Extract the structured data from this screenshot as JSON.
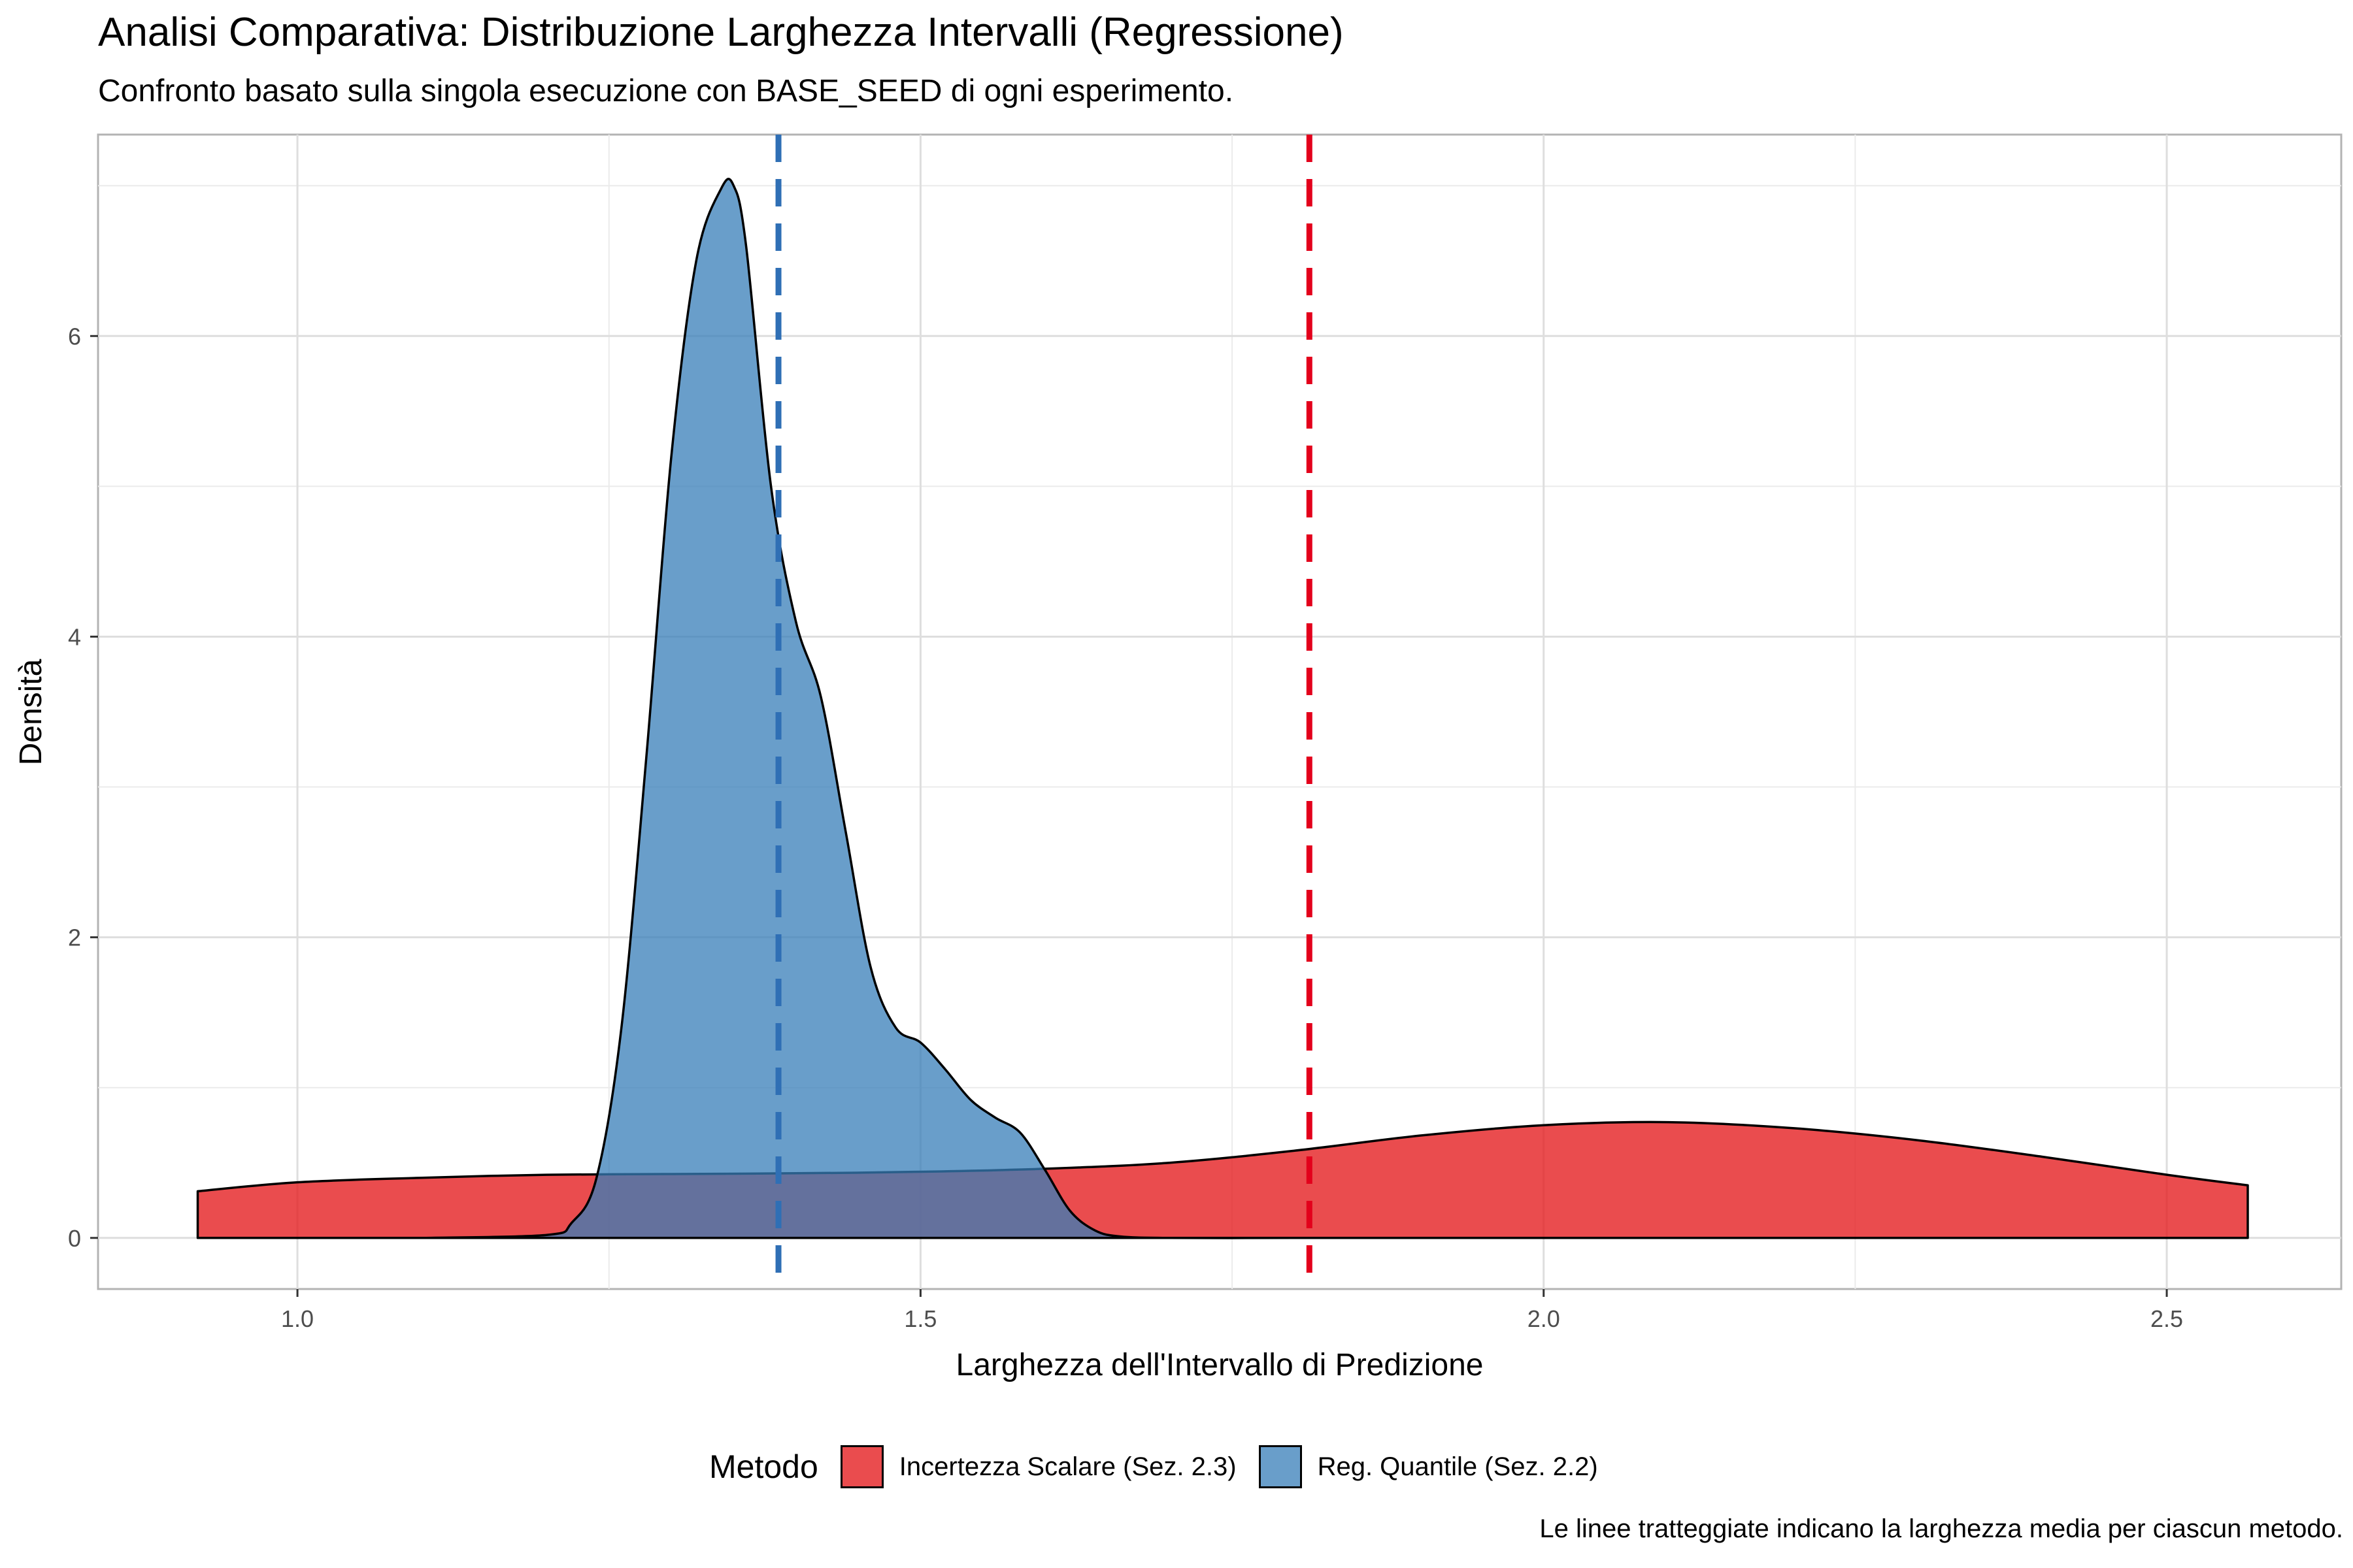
{
  "chart_data": {
    "type": "area",
    "title": "Analisi Comparativa: Distribuzione Larghezza Intervalli (Regressione)",
    "subtitle": "Confronto basato sulla singola esecuzione con BASE_SEED di ogni esperimento.",
    "xlabel": "Larghezza dell'Intervallo di Predizione",
    "ylabel": "Densità",
    "xlim": [
      0.84,
      2.64
    ],
    "ylim": [
      -0.34,
      7.34
    ],
    "x_ticks": [
      {
        "value": 1.0,
        "label": "1.0"
      },
      {
        "value": 1.5,
        "label": "1.5"
      },
      {
        "value": 2.0,
        "label": "2.0"
      },
      {
        "value": 2.5,
        "label": "2.5"
      }
    ],
    "y_ticks": [
      {
        "value": 0,
        "label": "0"
      },
      {
        "value": 2,
        "label": "2"
      },
      {
        "value": 4,
        "label": "4"
      },
      {
        "value": 6,
        "label": "6"
      }
    ],
    "grid": true,
    "legend": {
      "title": "Metodo",
      "position": "bottom"
    },
    "series": [
      {
        "name": "Incertezza Scalare (Sez. 2.3)",
        "color": "#E41A1C",
        "x": [
          0.92,
          1.0,
          1.1,
          1.2,
          1.3,
          1.4,
          1.5,
          1.6,
          1.7,
          1.8,
          1.9,
          2.0,
          2.1,
          2.2,
          2.3,
          2.4,
          2.5,
          2.565
        ],
        "y": [
          0.31,
          0.37,
          0.4,
          0.42,
          0.425,
          0.43,
          0.44,
          0.46,
          0.5,
          0.58,
          0.68,
          0.75,
          0.77,
          0.73,
          0.65,
          0.54,
          0.42,
          0.35
        ]
      },
      {
        "name": "Reg. Quantile (Sez. 2.2)",
        "color": "#377EB8",
        "x": [
          1.1,
          1.2,
          1.22,
          1.24,
          1.26,
          1.28,
          1.3,
          1.32,
          1.34,
          1.35,
          1.36,
          1.38,
          1.4,
          1.42,
          1.44,
          1.46,
          1.48,
          1.5,
          1.52,
          1.54,
          1.56,
          1.58,
          1.6,
          1.62,
          1.64,
          1.66,
          1.7,
          1.8
        ],
        "y": [
          0.0,
          0.02,
          0.1,
          0.4,
          1.4,
          3.2,
          5.2,
          6.5,
          6.98,
          7.0,
          6.6,
          5.0,
          4.1,
          3.6,
          2.7,
          1.8,
          1.4,
          1.3,
          1.12,
          0.92,
          0.8,
          0.7,
          0.45,
          0.18,
          0.05,
          0.01,
          0.0,
          0.0
        ]
      }
    ],
    "mean_lines": [
      {
        "series": "Reg. Quantile (Sez. 2.2)",
        "x": 1.386,
        "color": "#377EB8"
      },
      {
        "series": "Incertezza Scalare (Sez. 2.3)",
        "x": 1.812,
        "color": "#E41A1C"
      }
    ],
    "caption": "Le linee tratteggiate indicano la larghezza media per ciascun metodo."
  }
}
